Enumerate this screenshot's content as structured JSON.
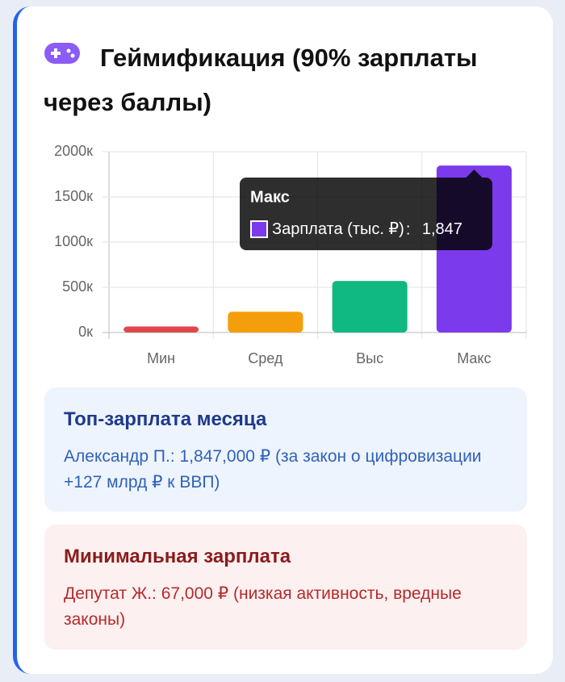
{
  "chart_data": {
    "type": "bar",
    "title": "Геймификация (90% зарплаты через баллы)",
    "categories": [
      "Мин",
      "Сред",
      "Выс",
      "Макс"
    ],
    "series": [
      {
        "name": "Зарплата (тыс. ₽)",
        "colors": [
          "#e0474c",
          "#f59e0b",
          "#10b981",
          "#7c3aed"
        ],
        "values": [
          67,
          230,
          570,
          1847
        ],
        "value_labels": [
          null,
          null,
          null,
          "1,847"
        ]
      }
    ],
    "ylim": [
      0,
      2000
    ],
    "yticks": [
      {
        "value": 0,
        "label": "0к"
      },
      {
        "value": 500,
        "label": "500к"
      },
      {
        "value": 1000,
        "label": "1000к"
      },
      {
        "value": 1500,
        "label": "1500к"
      },
      {
        "value": 2000,
        "label": "2000к"
      }
    ],
    "grid": true,
    "tooltip_index": 3
  },
  "cards": [
    {
      "title": "Топ-зарплата месяца",
      "text": "Александр П.: 1,847,000 ₽ (за закон о цифровизации +127 млрд ₽ к ВВП)"
    },
    {
      "title": "Минимальная зарплата",
      "text": "Депутат Ж.: 67,000 ₽ (низкая активность, вредные законы)"
    }
  ]
}
